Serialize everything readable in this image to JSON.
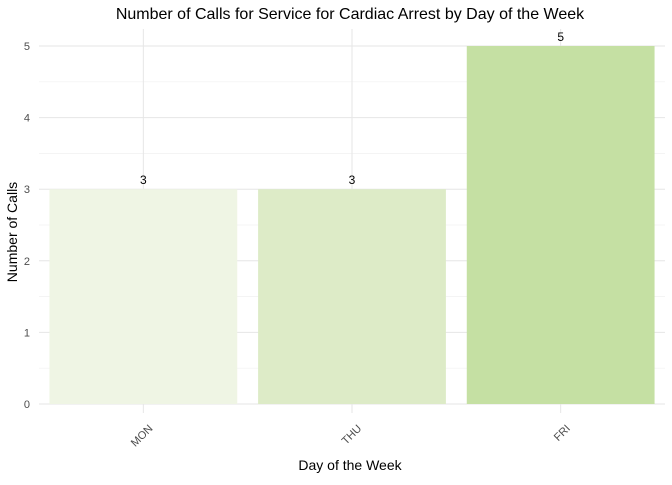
{
  "chart_data": {
    "type": "bar",
    "title": "Number of Calls for Service for Cardiac Arrest by Day of the Week",
    "xlabel": "Day of the Week",
    "ylabel": "Number of Calls",
    "categories": [
      "MON",
      "THU",
      "FRI"
    ],
    "values": [
      3,
      3,
      5
    ],
    "colors": [
      "#eff5e4",
      "#ddebc7",
      "#c5e0a3"
    ],
    "ylim": [
      0,
      5
    ],
    "yticks": [
      0,
      1,
      2,
      3,
      4,
      5
    ],
    "grid": true,
    "legend": "none",
    "x_tick_rotation": "45"
  }
}
